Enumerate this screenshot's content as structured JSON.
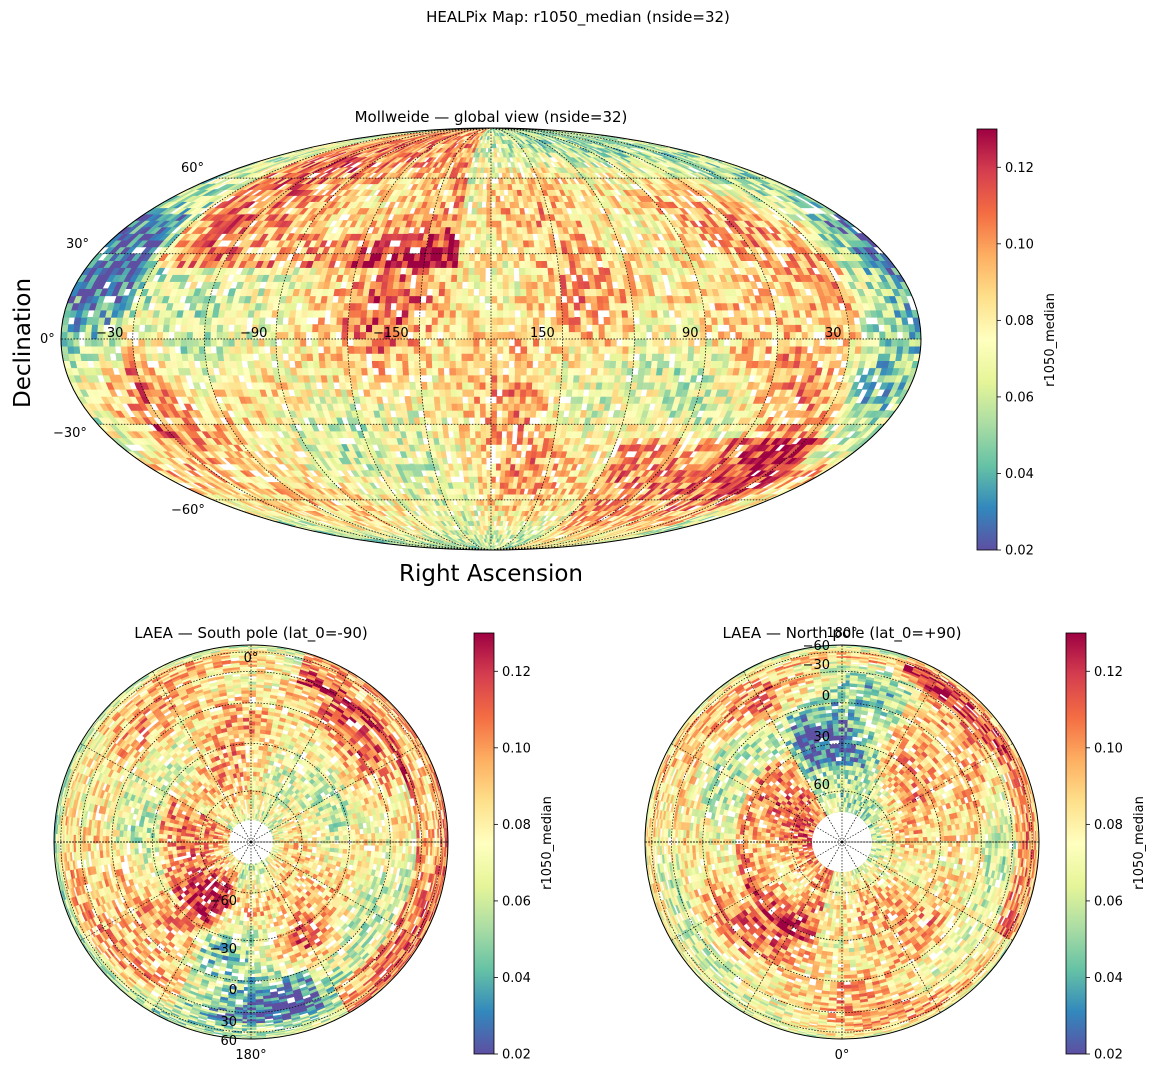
{
  "suptitle": "HEALPix Map: r1050_median (nside=32)",
  "colors": {
    "colormap": [
      "#5e4fa2",
      "#3288bd",
      "#66c2a5",
      "#abdda4",
      "#e6f598",
      "#ffffbf",
      "#fee08b",
      "#fdae61",
      "#f46d43",
      "#d53e4f",
      "#9e0142"
    ],
    "graticule": "#000000",
    "background": "#ffffff"
  },
  "chart_data": [
    {
      "type": "heatmap",
      "projection": "mollweide",
      "title": "Mollweide — global view (nside=32)",
      "xlabel": "Right Ascension",
      "ylabel": "Declination",
      "lat_ticks": [
        {
          "value": 60,
          "label": "60°"
        },
        {
          "value": 30,
          "label": "30°"
        },
        {
          "value": 0,
          "label": "0°"
        },
        {
          "value": -30,
          "label": "−30°"
        },
        {
          "value": -60,
          "label": "−60°"
        }
      ],
      "lon_ticks": [
        {
          "value": -30,
          "label": "−30"
        },
        {
          "value": -90,
          "label": "−90"
        },
        {
          "value": -150,
          "label": "−150"
        },
        {
          "value": 150,
          "label": "150"
        },
        {
          "value": 90,
          "label": "90"
        },
        {
          "value": 30,
          "label": "30"
        }
      ],
      "colorbar": {
        "label": "r1050_median",
        "vmin": 0.02,
        "vmax": 0.13,
        "ticks": [
          "0.02",
          "0.04",
          "0.06",
          "0.08",
          "0.10",
          "0.12"
        ]
      },
      "value_range": [
        0.02,
        0.13
      ]
    },
    {
      "type": "heatmap",
      "projection": "laea",
      "lat_0": -90,
      "title": "LAEA — South pole (lat_0=-90)",
      "lon_top_label": "0°",
      "lon_bottom_label": "180°",
      "lat_labels": [
        "−60",
        "−30",
        "0",
        "30",
        "60"
      ],
      "colorbar": {
        "label": "r1050_median",
        "vmin": 0.02,
        "vmax": 0.13,
        "ticks": [
          "0.02",
          "0.04",
          "0.06",
          "0.08",
          "0.10",
          "0.12"
        ]
      },
      "value_range": [
        0.02,
        0.13
      ]
    },
    {
      "type": "heatmap",
      "projection": "laea",
      "lat_0": 90,
      "title": "LAEA — North pole (lat_0=+90)",
      "lon_top_label": "180°",
      "lon_bottom_label": "0°",
      "lat_labels": [
        "−60",
        "−30",
        "0",
        "30",
        "60"
      ],
      "colorbar": {
        "label": "r1050_median",
        "vmin": 0.02,
        "vmax": 0.13,
        "ticks": [
          "0.02",
          "0.04",
          "0.06",
          "0.08",
          "0.10",
          "0.12"
        ]
      },
      "value_range": [
        0.02,
        0.13
      ]
    }
  ]
}
